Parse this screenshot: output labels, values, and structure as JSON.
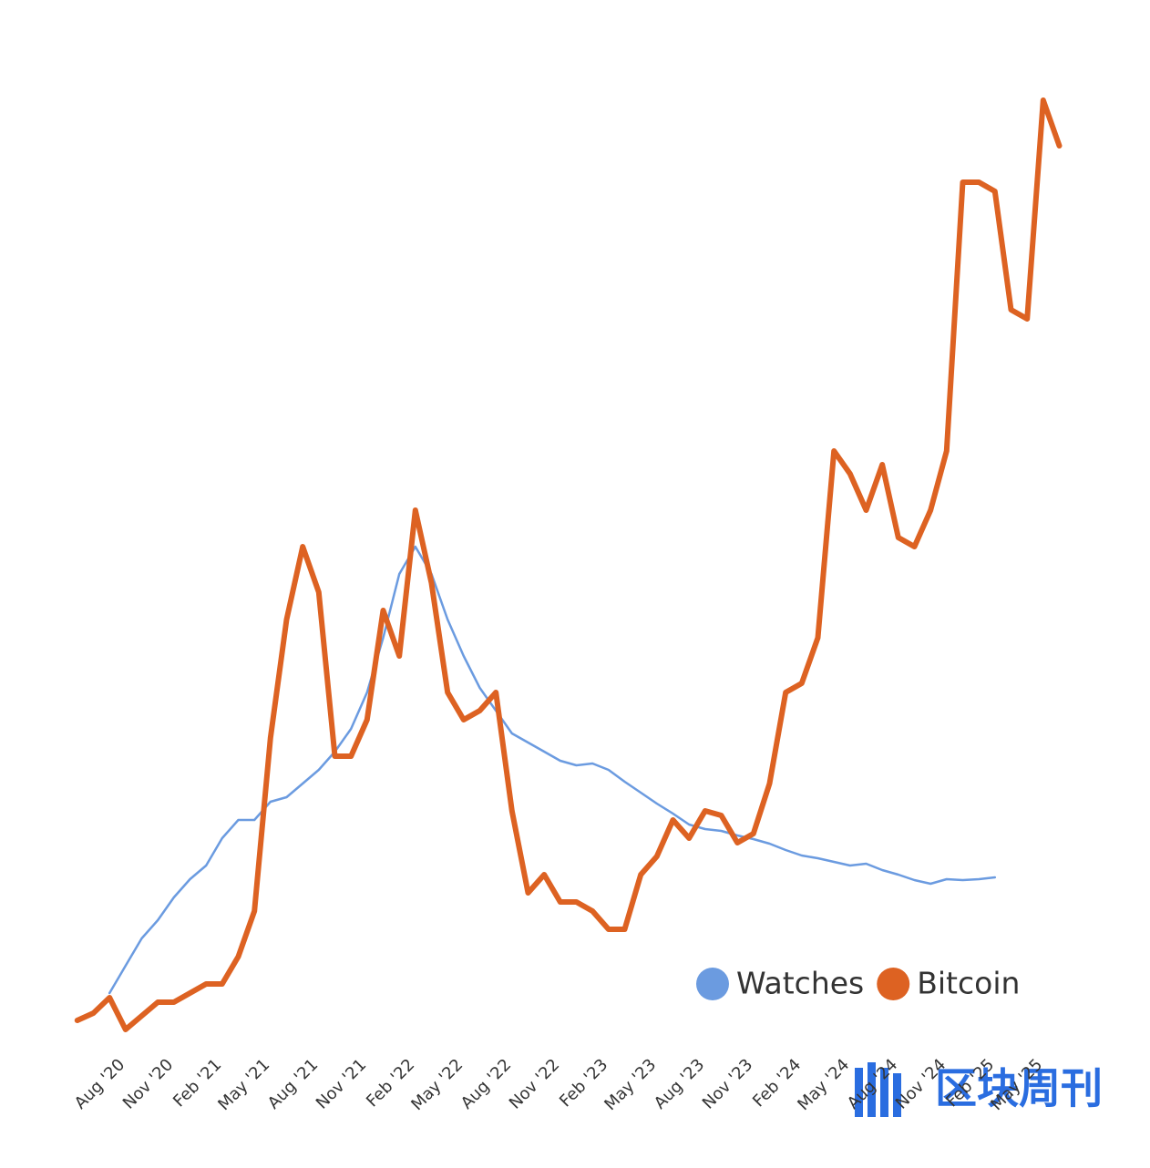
{
  "chart_data": {
    "type": "line",
    "x": [
      -2,
      -1,
      0,
      1,
      2,
      3,
      4,
      5,
      6,
      7,
      8,
      9,
      10,
      11,
      12,
      13,
      14,
      15,
      16,
      17,
      18,
      19,
      20,
      21,
      22,
      23,
      24,
      25,
      26,
      27,
      28,
      29,
      30,
      31,
      32,
      33,
      34,
      35,
      36,
      37,
      38,
      39,
      40,
      41,
      42,
      43,
      44,
      45,
      46,
      47,
      48,
      49,
      50,
      51,
      52,
      53,
      54,
      55,
      56,
      57,
      58,
      59
    ],
    "xlim": [
      -2.5,
      59
    ],
    "xticks": [
      {
        "value": 0,
        "label": "Aug '20"
      },
      {
        "value": 3,
        "label": "Nov '20"
      },
      {
        "value": 6,
        "label": "Feb '21"
      },
      {
        "value": 9,
        "label": "May '21"
      },
      {
        "value": 12,
        "label": "Aug '21"
      },
      {
        "value": 15,
        "label": "Nov '21"
      },
      {
        "value": 18,
        "label": "Feb '22"
      },
      {
        "value": 21,
        "label": "May '22"
      },
      {
        "value": 24,
        "label": "Aug '22"
      },
      {
        "value": 27,
        "label": "Nov '22"
      },
      {
        "value": 30,
        "label": "Feb '23"
      },
      {
        "value": 33,
        "label": "May '23"
      },
      {
        "value": 36,
        "label": "Aug '23"
      },
      {
        "value": 39,
        "label": "Nov '23"
      },
      {
        "value": 42,
        "label": "Feb '24"
      },
      {
        "value": 45,
        "label": "May '24"
      },
      {
        "value": 48,
        "label": "Aug '24"
      },
      {
        "value": 51,
        "label": "Nov '24"
      },
      {
        "value": 54,
        "label": "Feb '25"
      },
      {
        "value": 57,
        "label": "May '25"
      }
    ],
    "ylim": [
      0,
      110
    ],
    "series": [
      {
        "name": "Watches",
        "color": "#6b9be0",
        "width": 2.5,
        "values": [
          null,
          null,
          5,
          8,
          11,
          13,
          15.5,
          17.5,
          19,
          22,
          24,
          24,
          26,
          26.5,
          28,
          29.5,
          31.5,
          34,
          38,
          44,
          51,
          54,
          51,
          46,
          42,
          38.5,
          36,
          33.5,
          32.5,
          31.5,
          30.5,
          30,
          30.2,
          29.5,
          28.2,
          27,
          25.8,
          24.7,
          23.5,
          23,
          22.8,
          22.3,
          21.9,
          21.4,
          20.7,
          20.1,
          19.8,
          19.4,
          19,
          19.2,
          18.5,
          18,
          17.4,
          17,
          17.5,
          17.4,
          17.5,
          17.7,
          null,
          null,
          null,
          null
        ]
      },
      {
        "name": "Bitcoin",
        "color": "#dd6222",
        "width": 6,
        "values": [
          2,
          2.8,
          4.5,
          1,
          2.5,
          4,
          4,
          5,
          6,
          6,
          9,
          14,
          33,
          46,
          54,
          49,
          31,
          31,
          35,
          47,
          42,
          58,
          50,
          38,
          35,
          36,
          38,
          25,
          16,
          18,
          15,
          15,
          14,
          12,
          12,
          18,
          20,
          24,
          22,
          25,
          24.5,
          21.5,
          22.5,
          28,
          38,
          39,
          44,
          64.5,
          62,
          58,
          63,
          55,
          54,
          58,
          64.5,
          94,
          94,
          93,
          80,
          79,
          103,
          98
        ]
      }
    ],
    "watermark": "区块周刊"
  }
}
